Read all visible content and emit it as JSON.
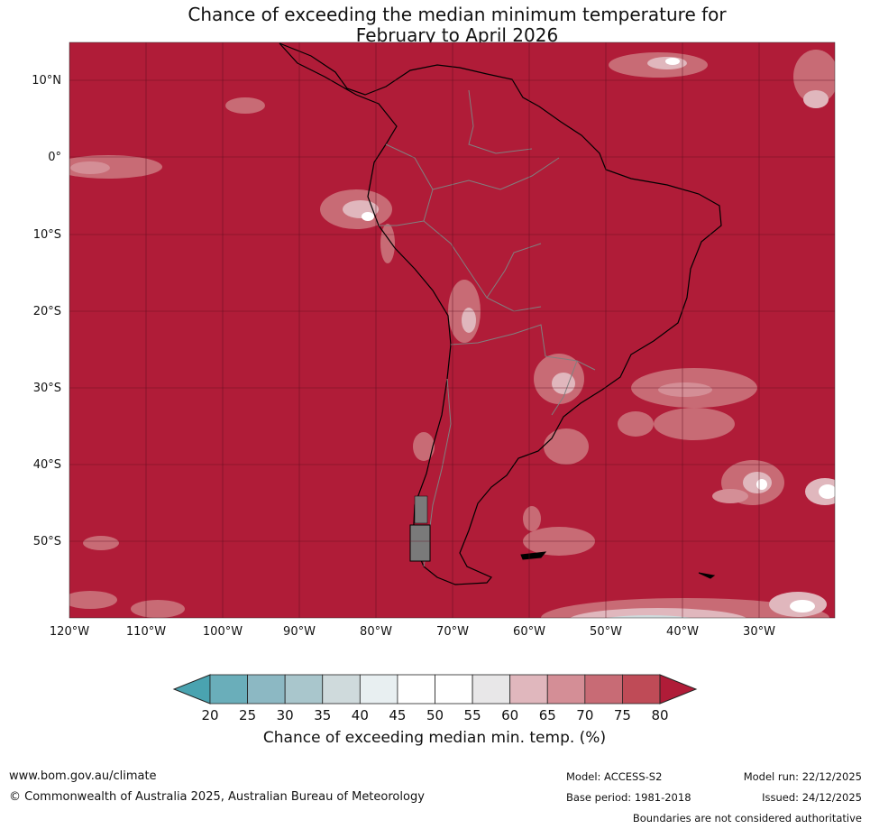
{
  "title": {
    "line1": "Chance of exceeding the median minimum temperature for",
    "line2": "February to April 2026"
  },
  "map": {
    "region": "South America",
    "lat_labels": [
      "10°N",
      "0°",
      "10°S",
      "20°S",
      "30°S",
      "40°S",
      "50°S"
    ],
    "lon_labels": [
      "120°W",
      "110°W",
      "100°W",
      "90°W",
      "80°W",
      "70°W",
      "60°W",
      "50°W",
      "40°W",
      "30°W"
    ],
    "dominant_category": "above 80",
    "background_color": "#b01c38",
    "land_outline_color": "#000000",
    "border_color": "#808080",
    "grid_color": "#5e0e1e"
  },
  "colorbar": {
    "ticks": [
      "20",
      "25",
      "30",
      "35",
      "40",
      "45",
      "50",
      "55",
      "60",
      "65",
      "70",
      "75",
      "80"
    ],
    "colors": [
      "#4aa3b0",
      "#6aaeba",
      "#8cb8c3",
      "#a9c6cc",
      "#cfdadc",
      "#e8eff1",
      "#ffffff",
      "#ffffff",
      "#e8e7e8",
      "#e0b7bd",
      "#d48e96",
      "#c86b75",
      "#bf4b57"
    ],
    "low_extend_color": "#4aa3b0",
    "high_extend_color": "#b01c38",
    "label": "Chance of exceeding median min. temp. (%)"
  },
  "footer": {
    "website": "www.bom.gov.au/climate",
    "copyright": "© Commonwealth of Australia 2025, Australian Bureau of Meteorology",
    "model": "Model: ACCESS-S2",
    "base_period": "Base period: 1981-2018",
    "model_run": "Model run: 22/12/2025",
    "issued": "Issued: 24/12/2025",
    "disclaimer": "Boundaries are not considered authoritative"
  }
}
